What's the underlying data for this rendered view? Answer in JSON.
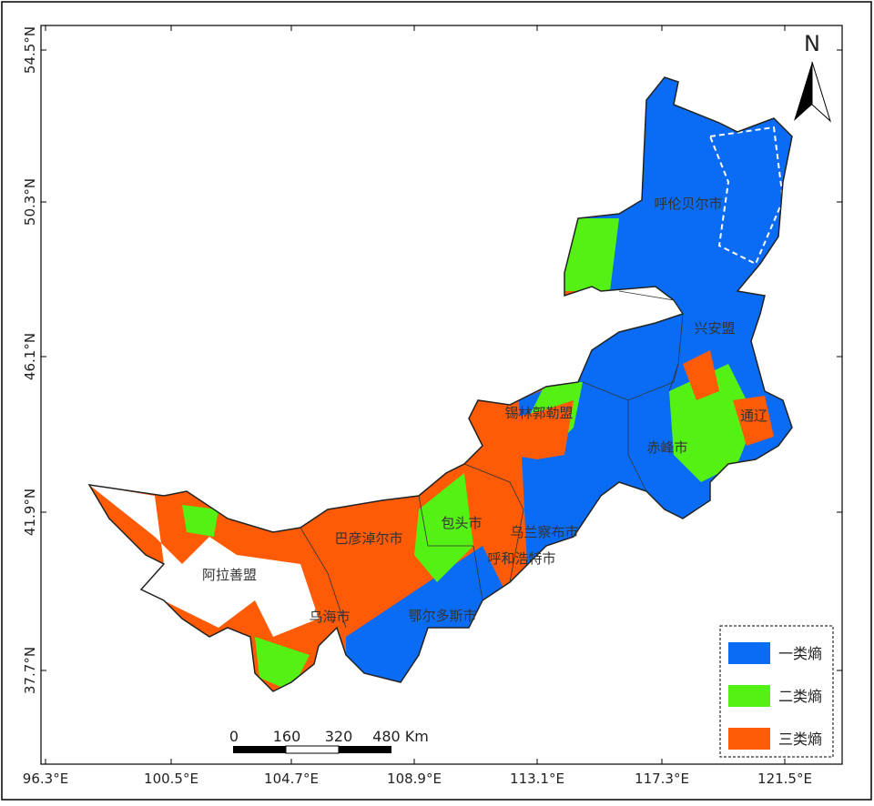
{
  "map": {
    "x_ticks": [
      "96.3°E",
      "100.5°E",
      "104.7°E",
      "108.9°E",
      "113.1°E",
      "117.3°E",
      "121.5°E"
    ],
    "y_ticks": [
      "54.5°N",
      "50.3°N",
      "46.1°N",
      "41.9°N",
      "37.7°N"
    ],
    "north": "N",
    "scale_bar": [
      "0",
      "160",
      "320",
      "480 Km"
    ],
    "regions": [
      "呼伦贝尔市",
      "兴安盟",
      "锡林郭勒盟",
      "通辽",
      "赤峰市",
      "乌兰察布市",
      "呼和浩特市",
      "包头市",
      "巴彦淖尔市",
      "阿拉善盟",
      "乌海市",
      "鄂尔多斯市"
    ],
    "legend": [
      {
        "label": "一类熵",
        "color": "#0a6cf5"
      },
      {
        "label": "二类熵",
        "color": "#55f014"
      },
      {
        "label": "三类熵",
        "color": "#ff5a05"
      }
    ]
  }
}
